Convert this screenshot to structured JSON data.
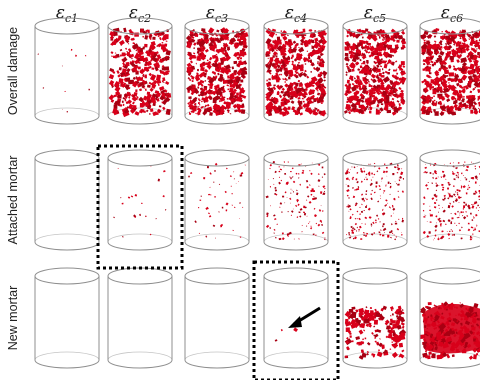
{
  "columns": [
    {
      "sym": "ε",
      "sub": "c1"
    },
    {
      "sym": "ε",
      "sub": "c2"
    },
    {
      "sym": "ε",
      "sub": "c3"
    },
    {
      "sym": "ε",
      "sub": "c4"
    },
    {
      "sym": "ε",
      "sub": "c5"
    },
    {
      "sym": "ε",
      "sub": "c6"
    }
  ],
  "rows": [
    {
      "label": "Overall damage",
      "levels": [
        0.02,
        0.75,
        0.95,
        0.97,
        0.98,
        0.98
      ]
    },
    {
      "label": "Attached mortar",
      "levels": [
        0.0,
        0.05,
        0.12,
        0.35,
        0.55,
        0.62
      ]
    },
    {
      "label": "New mortar",
      "levels": [
        0.0,
        0.0,
        0.0,
        0.01,
        0.55,
        0.75
      ]
    }
  ],
  "highlights": [
    {
      "row": 1,
      "col": 1,
      "style": "dotted-box"
    },
    {
      "row": 2,
      "col": 3,
      "style": "dotted-box",
      "arrow": true
    }
  ],
  "colors": {
    "damage": "#d8001a",
    "damage_dark": "#a80012",
    "outline": "#8f8f8f",
    "box": "#000000"
  }
}
